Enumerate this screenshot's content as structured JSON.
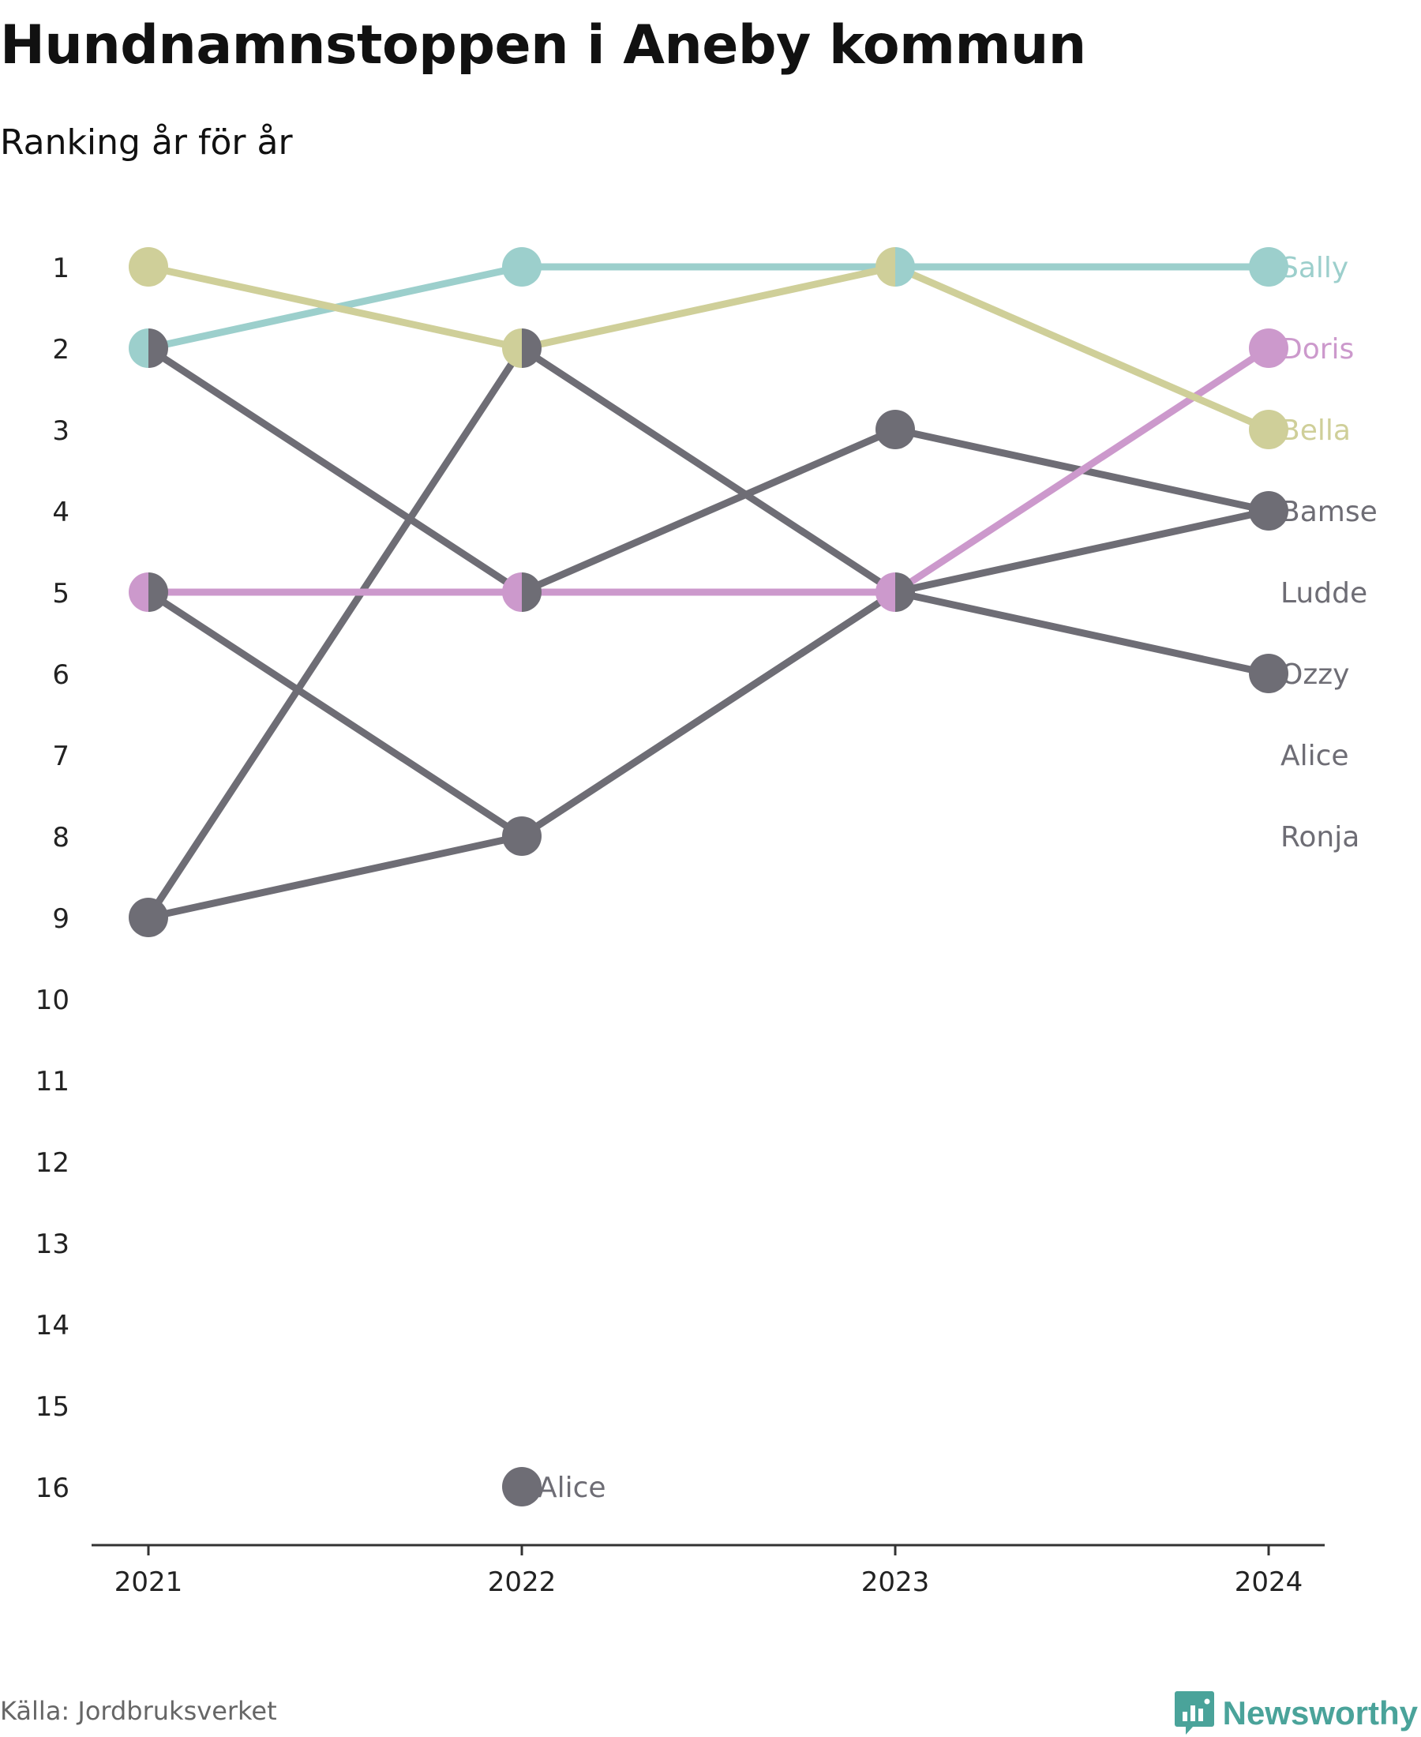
{
  "title": "Hundnamnstoppen i Aneby kommun",
  "subtitle": "Ranking år för år",
  "source": "Källa: Jordbruksverket",
  "brand": "Newsworthy",
  "brand_icon": "bar-chart-speech-bubble-icon",
  "colors": {
    "Sally": "#9ccfcc",
    "Doris": "#cc99cc",
    "Bella": "#cfcf99",
    "default": "#6e6d75",
    "axis": "#333333",
    "brand": "#4aa39a"
  },
  "chart_data": {
    "type": "line",
    "title": "Hundnamnstoppen i Aneby kommun",
    "subtitle": "Ranking år för år",
    "x": [
      "2021",
      "2022",
      "2023",
      "2024"
    ],
    "y_ticks": [
      "1",
      "2",
      "3",
      "4",
      "5",
      "6",
      "7",
      "8",
      "9",
      "10",
      "11",
      "12",
      "13",
      "14",
      "15",
      "16"
    ],
    "y_inverted": true,
    "ylim": [
      1,
      16
    ],
    "series": [
      {
        "name": "Sally",
        "values": [
          2,
          1,
          1,
          1
        ],
        "color": "#9ccfcc",
        "end_label": "Sally"
      },
      {
        "name": "Doris",
        "values": [
          5,
          5,
          5,
          2
        ],
        "color": "#cc99cc",
        "end_label": "Doris"
      },
      {
        "name": "Bella",
        "values": [
          1,
          2,
          1,
          3
        ],
        "color": "#cfcf99",
        "end_label": "Bella"
      },
      {
        "name": "Bamse",
        "values": [
          9,
          8,
          5,
          4
        ],
        "color": "#6e6d75",
        "end_label": "Bamse"
      },
      {
        "name": "Ludde",
        "values": [
          2,
          5,
          3,
          4
        ],
        "color": "#6e6d75",
        "end_label": "Ludde"
      },
      {
        "name": "Ozzy",
        "values": [
          5,
          8,
          5,
          6
        ],
        "color": "#6e6d75",
        "end_label": "Ozzy"
      },
      {
        "name": "Alice",
        "values": [
          null,
          16,
          null,
          null
        ],
        "color": "#6e6d75",
        "end_label": "Alice",
        "point_label": "Alice"
      },
      {
        "name": "Ronja",
        "values": [
          9,
          2,
          5,
          null
        ],
        "color": "#6e6d75",
        "end_label": "Ronja"
      }
    ],
    "end_labels": [
      {
        "text": "Sally",
        "rank": 1,
        "color": "#9ccfcc"
      },
      {
        "text": "Doris",
        "rank": 2,
        "color": "#cc99cc"
      },
      {
        "text": "Bella",
        "rank": 3,
        "color": "#cfcf99"
      },
      {
        "text": "Bamse",
        "rank": 4,
        "color": "#6e6d75"
      },
      {
        "text": "Ludde",
        "rank": 5,
        "color": "#6e6d75"
      },
      {
        "text": "Ozzy",
        "rank": 6,
        "color": "#6e6d75"
      },
      {
        "text": "Alice",
        "rank": 7,
        "color": "#6e6d75"
      },
      {
        "text": "Ronja",
        "rank": 8,
        "color": "#6e6d75"
      }
    ],
    "point_labels": [
      {
        "text": "Alice",
        "x": "2022",
        "rank": 16,
        "color": "#6e6d75"
      }
    ],
    "grid": false,
    "legend": "none"
  }
}
